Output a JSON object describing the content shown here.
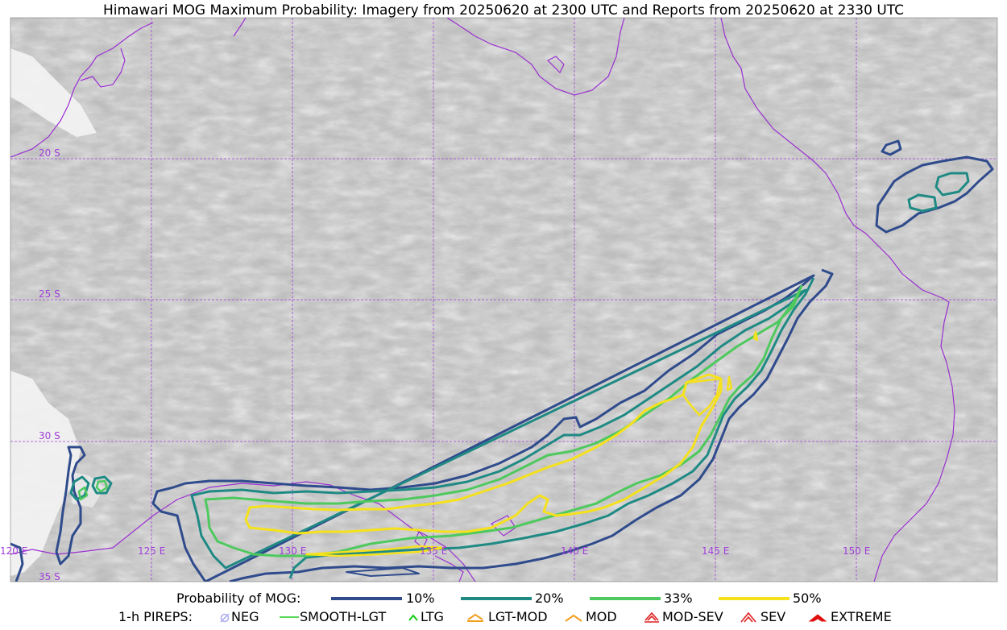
{
  "title": "Himawari MOG Maximum Probability: Imagery from 20250620 at 2300 UTC and Reports from 20250620 at 2330 UTC",
  "map": {
    "lat_labels": [
      "20 S",
      "25 S",
      "30 S",
      "35 S"
    ],
    "lon_labels": [
      "120 E",
      "125 E",
      "130 E",
      "135 E",
      "140 E",
      "145 E",
      "150 E"
    ],
    "grid_color": "#a040d8",
    "coast_color": "#9a30d0"
  },
  "legend": {
    "prob_title": "Probability of MOG:",
    "prob_items": [
      {
        "label": "10%",
        "color": "#2f4b8c"
      },
      {
        "label": "20%",
        "color": "#1f8a84"
      },
      {
        "label": "33%",
        "color": "#4ec95e"
      },
      {
        "label": "50%",
        "color": "#f5e11c"
      }
    ],
    "pirep_title": "1-h PIREPS:",
    "pirep_items": [
      {
        "label": "NEG",
        "icon": "neg-circle-icon",
        "color": "#b0b0f0"
      },
      {
        "label": "SMOOTH-LGT",
        "icon": "line-icon",
        "color": "#22cc22"
      },
      {
        "label": "LTG",
        "icon": "caret-icon",
        "color": "#11cc11"
      },
      {
        "label": "LGT-MOD",
        "icon": "hat-underline-icon",
        "color": "#f0a020"
      },
      {
        "label": "MOD",
        "icon": "hat-icon",
        "color": "#f0a020"
      },
      {
        "label": "MOD-SEV",
        "icon": "double-hat-underline-icon",
        "color": "#e02020"
      },
      {
        "label": "SEV",
        "icon": "double-hat-icon",
        "color": "#e02020"
      },
      {
        "label": "EXTREME",
        "icon": "filled-hat-icon",
        "color": "#e01010"
      }
    ]
  }
}
